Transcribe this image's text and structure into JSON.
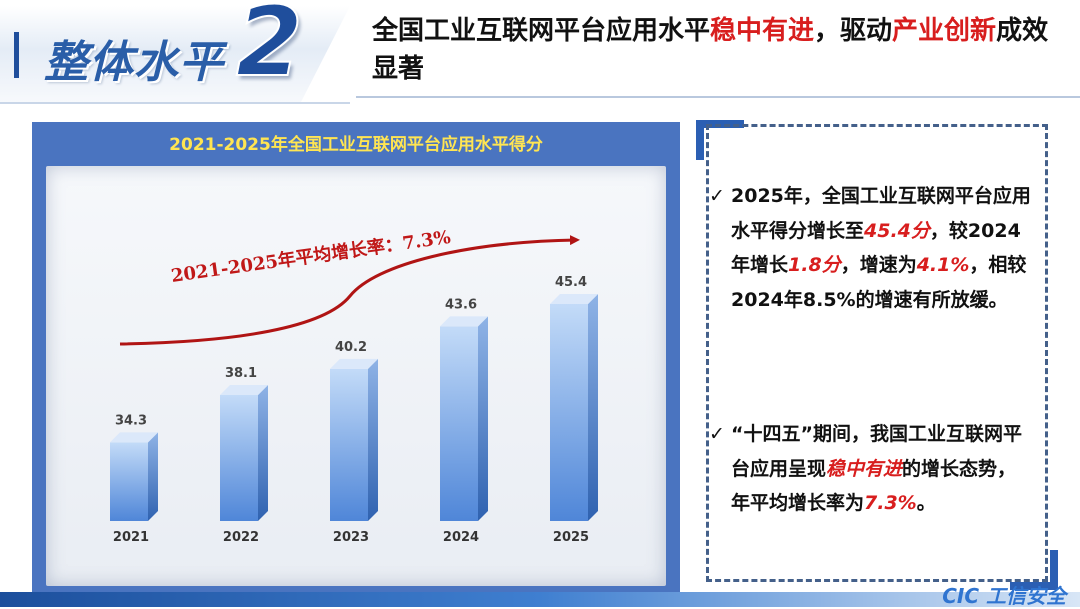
{
  "header": {
    "section_title": "整体水平",
    "section_number": "2",
    "headline_parts": [
      {
        "text": "全国工业互联网平台应用水平",
        "hl": false
      },
      {
        "text": "稳中有进",
        "hl": true
      },
      {
        "text": "，驱动",
        "hl": false
      },
      {
        "text": "产业创新",
        "hl": true
      },
      {
        "text": "成效显著",
        "hl": false
      }
    ]
  },
  "colors": {
    "accent_red": "#d81e1e",
    "brand_blue": "#1f4e9c",
    "panel_blue": "#4a74c0",
    "chart_title_yellow": "#ffe552",
    "bar_top": "#b8d2f4",
    "bar_bottom": "#4f86d8"
  },
  "chart_data": {
    "type": "bar",
    "title": "2021-2025年全国工业互联网平台应用水平得分",
    "categories": [
      "2021",
      "2022",
      "2023",
      "2024",
      "2025"
    ],
    "values": [
      34.3,
      38.1,
      40.2,
      43.6,
      45.4
    ],
    "xlabel": "",
    "ylabel": "",
    "ylim": [
      28,
      47
    ],
    "grid": false,
    "annotation": "2021-2025年平均增长率：7.3%"
  },
  "right_panel": {
    "check_glyph": "✓",
    "point1": [
      {
        "text": "2025年，全国工业互联网平台应用水平得分增长至",
        "em": false
      },
      {
        "text": "45.4分",
        "em": true
      },
      {
        "text": "，较2024年增长",
        "em": false
      },
      {
        "text": "1.8分",
        "em": true
      },
      {
        "text": "，增速为",
        "em": false
      },
      {
        "text": "4.1%",
        "em": true
      },
      {
        "text": "，相较2024年8.5%的增速有所放缓。",
        "em": false
      }
    ],
    "point2": [
      {
        "text": "“十四五”期间，我国工业互联网平台应用呈现",
        "em": false
      },
      {
        "text": "稳中有进",
        "em": true
      },
      {
        "text": "的增长态势，年平均增长率为",
        "em": false
      },
      {
        "text": "7.3%",
        "em": true
      },
      {
        "text": "。",
        "em": false
      }
    ]
  },
  "footer": {
    "logo_text": "CIC 工信安全"
  }
}
